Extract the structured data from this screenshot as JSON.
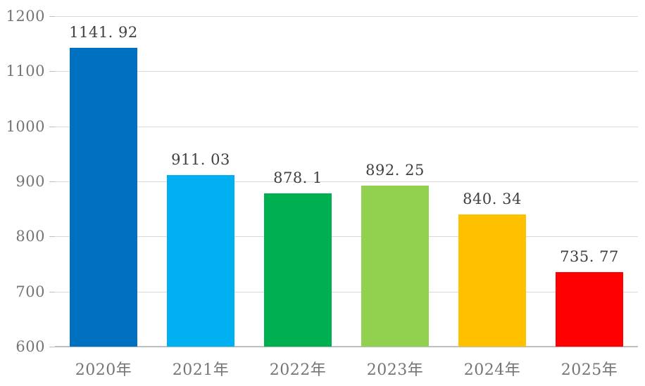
{
  "chart_data": {
    "type": "bar",
    "title": "",
    "xlabel": "",
    "ylabel": "",
    "categories": [
      "2020年",
      "2021年",
      "2022年",
      "2023年",
      "2024年",
      "2025年"
    ],
    "values": [
      1141.92,
      911.03,
      878.1,
      892.25,
      840.34,
      735.77
    ],
    "data_labels": [
      "1141. 92",
      "911. 03",
      "878. 1",
      "892. 25",
      "840. 34",
      "735. 77"
    ],
    "bar_colors": [
      "#0070C0",
      "#00B0F0",
      "#00B050",
      "#92D050",
      "#FFC000",
      "#FF0000"
    ],
    "y_ticks": [
      600,
      700,
      800,
      900,
      1000,
      1100,
      1200
    ],
    "ylim": [
      600,
      1200
    ],
    "grid": "horizontal",
    "legend": "none",
    "colors": {
      "background": "#FFFFFF",
      "gridline": "#D9D9D9",
      "axis_line": "#BFBFBF",
      "tick_mark": "#BFBFBF",
      "axis_label": "#757575",
      "category_label": "#757575",
      "data_label": "#404040"
    }
  }
}
